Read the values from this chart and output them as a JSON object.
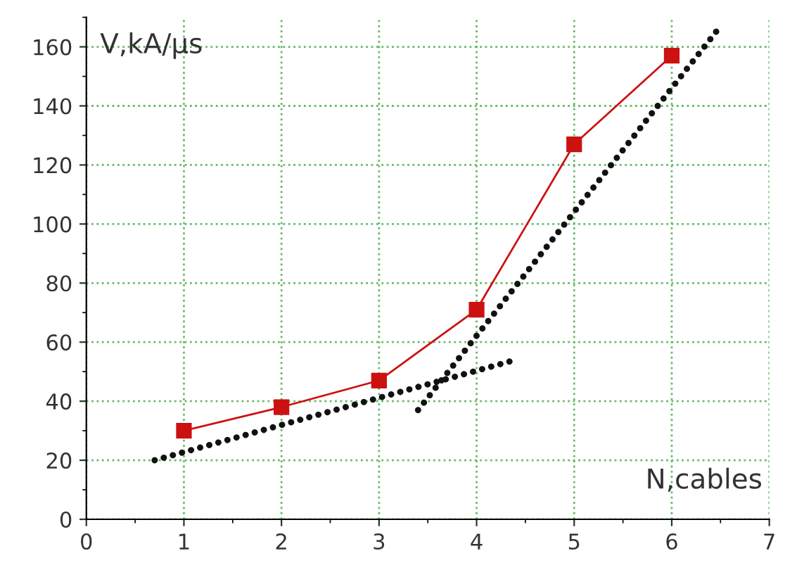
{
  "chart_data": {
    "type": "line",
    "xlabel": "N,cables",
    "ylabel": "V,kA/µs",
    "xlim": [
      0,
      7
    ],
    "ylim": [
      0,
      170
    ],
    "xticks": [
      0,
      1,
      2,
      3,
      4,
      5,
      6,
      7
    ],
    "yticks": [
      0,
      20,
      40,
      60,
      80,
      100,
      120,
      140,
      160
    ],
    "grid": true,
    "series": [
      {
        "color": "#cc1111",
        "x": [
          1,
          2,
          3,
          4,
          5,
          6
        ],
        "values": [
          30,
          38,
          47,
          71,
          127,
          157
        ],
        "marker": "square",
        "line_style": "solid"
      },
      {
        "color": "#111111",
        "x": [
          0.7,
          4.4
        ],
        "values": [
          20,
          54
        ],
        "marker": "none",
        "line_style": "dotted"
      },
      {
        "color": "#111111",
        "x": [
          3.4,
          6.5
        ],
        "values": [
          37,
          167
        ],
        "marker": "none",
        "line_style": "dotted"
      }
    ]
  }
}
